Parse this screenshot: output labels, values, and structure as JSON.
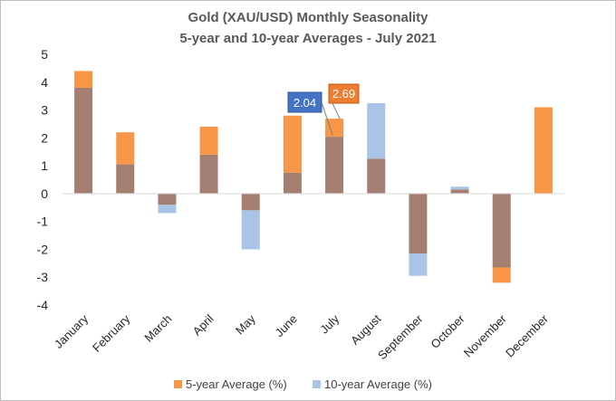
{
  "chart_data": {
    "type": "bar",
    "title": "Gold (XAU/USD) Monthly Seasonality",
    "subtitle": "5-year and 10-year Averages - July 2021",
    "categories": [
      "January",
      "February",
      "March",
      "April",
      "May",
      "June",
      "July",
      "August",
      "September",
      "October",
      "November",
      "December"
    ],
    "series": [
      {
        "name": "5-year Average (%)",
        "color": "#f79646",
        "values": [
          4.4,
          2.2,
          -0.4,
          2.4,
          -0.6,
          2.8,
          2.69,
          1.25,
          -2.15,
          0.15,
          -3.2,
          3.1
        ]
      },
      {
        "name": "10-year Average (%)",
        "color": "#a9c4e6",
        "values": [
          3.8,
          1.05,
          -0.7,
          1.4,
          -2.0,
          0.75,
          2.04,
          3.25,
          -2.95,
          0.25,
          -2.65,
          0.0
        ]
      }
    ],
    "overlap_color": "#a57e72",
    "ylim": [
      -4,
      5
    ],
    "yticks": [
      5,
      4,
      3,
      2,
      1,
      0,
      -1,
      -2,
      -3,
      -4
    ],
    "grid": false,
    "legend": "bottom",
    "annotations": [
      {
        "text": "2.04",
        "color": "#4472c4",
        "points_to": "July 10-year"
      },
      {
        "text": "2.69",
        "color": "#ed7d31",
        "points_to": "July 5-year"
      }
    ]
  }
}
